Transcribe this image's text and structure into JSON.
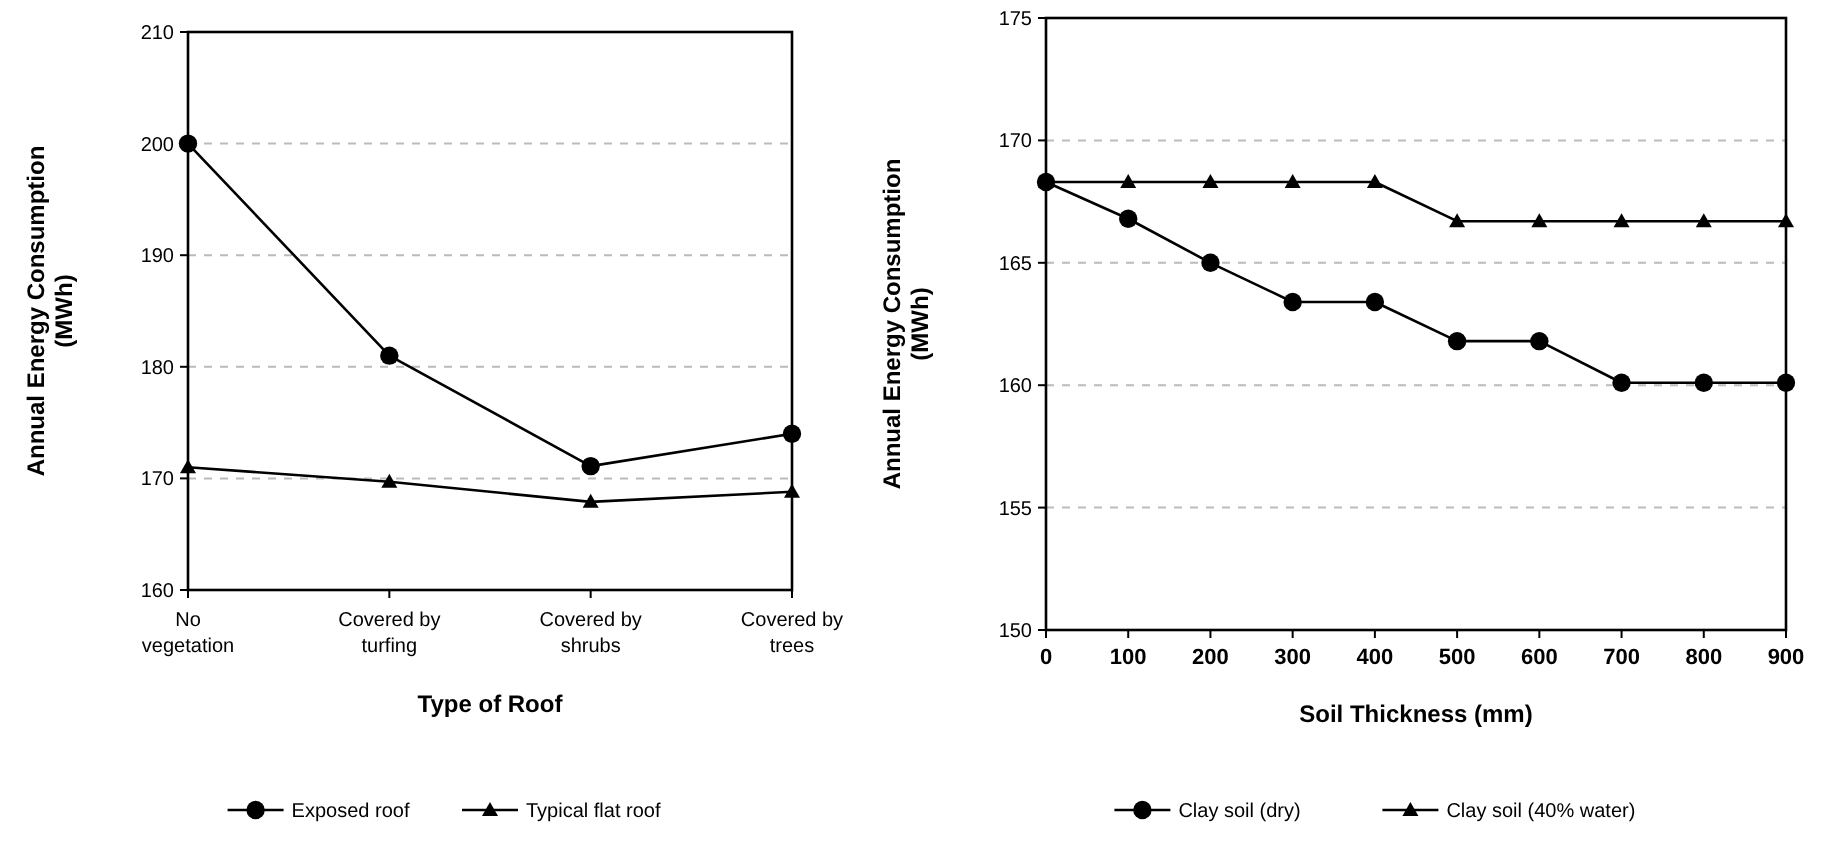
{
  "chart_data": [
    {
      "type": "line",
      "xlabel": "Type of Roof",
      "ylabel": "Annual Energy Consumption (MWh)",
      "categories": [
        "No vegetation",
        "Covered by turfing",
        "Covered by shrubs",
        "Covered by trees"
      ],
      "series": [
        {
          "name": "Exposed roof",
          "color": "#000000",
          "values": [
            200,
            181,
            171.1,
            174
          ],
          "marker": "circle"
        },
        {
          "name": "Typical flat roof",
          "color": "#000000",
          "values": [
            171,
            169.7,
            167.9,
            168.8
          ],
          "marker": "triangle"
        }
      ],
      "ylim": [
        160,
        210
      ],
      "yticks": [
        160,
        170,
        180,
        190,
        200,
        210
      ],
      "grid": "y",
      "legend": "bottom"
    },
    {
      "type": "line",
      "xlabel": "Soil Thickness (mm)",
      "ylabel": "Annual Energy Consumption (MWh)",
      "x": [
        0,
        100,
        200,
        300,
        400,
        500,
        600,
        700,
        800,
        900
      ],
      "series": [
        {
          "name": "Clay soil (dry)",
          "color": "#000000",
          "values": [
            168.3,
            166.8,
            165,
            163.4,
            163.4,
            161.8,
            161.8,
            160.1,
            160.1,
            160.1
          ],
          "marker": "circle"
        },
        {
          "name": "Clay soil (40% water)",
          "color": "#000000",
          "values": [
            168.3,
            168.3,
            168.3,
            168.3,
            168.3,
            166.7,
            166.7,
            166.7,
            166.7,
            166.7
          ],
          "marker": "triangle"
        }
      ],
      "xlim": [
        0,
        900
      ],
      "xticks": [
        0,
        100,
        200,
        300,
        400,
        500,
        600,
        700,
        800,
        900
      ],
      "ylim": [
        150,
        175
      ],
      "yticks": [
        150,
        155,
        160,
        165,
        170,
        175
      ],
      "grid": "y",
      "legend": "bottom"
    }
  ]
}
